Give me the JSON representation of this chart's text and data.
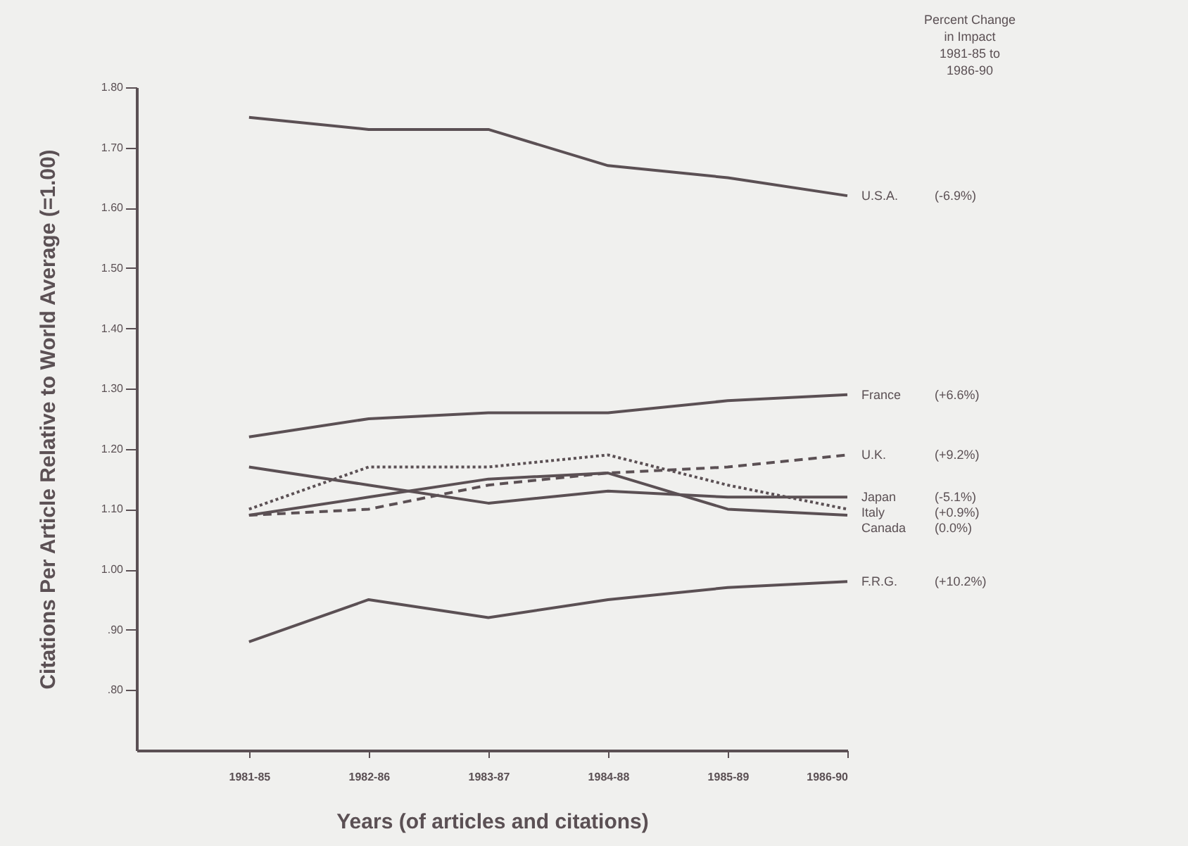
{
  "chart_data": {
    "type": "line",
    "xlabel": "Years (of articles and citations)",
    "ylabel": "Citations Per Article Relative to World Average (=1.00)",
    "categories": [
      "1981-85",
      "1982-86",
      "1983-87",
      "1984-88",
      "1985-89",
      "1986-90"
    ],
    "ylim": [
      0.7,
      1.8
    ],
    "yticks": [
      {
        "value": 0.8,
        "label": ".80"
      },
      {
        "value": 0.9,
        "label": ".90"
      },
      {
        "value": 1.0,
        "label": "1.00"
      },
      {
        "value": 1.1,
        "label": "1.10"
      },
      {
        "value": 1.2,
        "label": "1.20"
      },
      {
        "value": 1.3,
        "label": "1.30"
      },
      {
        "value": 1.4,
        "label": "1.40"
      },
      {
        "value": 1.5,
        "label": "1.50"
      },
      {
        "value": 1.6,
        "label": "1.60"
      },
      {
        "value": 1.7,
        "label": "1.70"
      },
      {
        "value": 1.8,
        "label": "1.80"
      }
    ],
    "grid": false,
    "marker": "none",
    "series": [
      {
        "name": "U.S.A.",
        "color": "#5b5054",
        "line_style": "solid",
        "values": [
          1.75,
          1.73,
          1.73,
          1.67,
          1.65,
          1.62
        ]
      },
      {
        "name": "France",
        "color": "#5b5054",
        "line_style": "solid",
        "values": [
          1.22,
          1.25,
          1.26,
          1.26,
          1.28,
          1.29
        ]
      },
      {
        "name": "U.K.",
        "color": "#5b5054",
        "line_style": "dashed",
        "values": [
          1.09,
          1.1,
          1.14,
          1.16,
          1.17,
          1.19
        ]
      },
      {
        "name": "Japan",
        "color": "#5b5054",
        "line_style": "solid",
        "values": [
          1.17,
          1.14,
          1.11,
          1.13,
          1.12,
          1.12
        ]
      },
      {
        "name": "Italy",
        "color": "#5b5054",
        "line_style": "dotted",
        "values": [
          1.1,
          1.17,
          1.17,
          1.19,
          1.14,
          1.1
        ]
      },
      {
        "name": "Canada",
        "color": "#5b5054",
        "line_style": "solid",
        "values": [
          1.09,
          1.12,
          1.15,
          1.16,
          1.1,
          1.09
        ]
      },
      {
        "name": "F.R.G.",
        "color": "#5b5054",
        "line_style": "solid",
        "values": [
          0.88,
          0.95,
          0.92,
          0.95,
          0.97,
          0.98
        ]
      }
    ],
    "annotations": [
      "Percent Change\nin Impact\n1981-85 to\n1986-90",
      "(-6.9%)",
      "(+6.6%)",
      "(+9.2%)",
      "(-5.1%)",
      "(+0.9%)",
      "(0.0%)",
      "(+10.2%)"
    ]
  }
}
